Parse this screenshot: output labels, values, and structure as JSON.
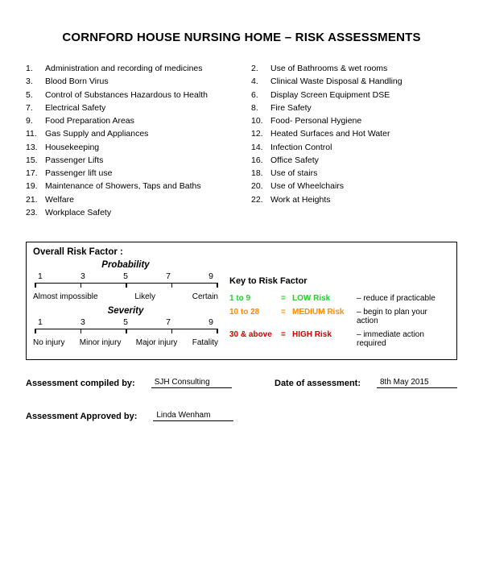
{
  "title": "CORNFORD HOUSE NURSING HOME – RISK ASSESSMENTS",
  "items_left": [
    {
      "n": "1.",
      "t": "Administration and recording of medicines"
    },
    {
      "n": "3.",
      "t": "Blood Born Virus"
    },
    {
      "n": "5.",
      "t": "Control of Substances Hazardous to Health"
    },
    {
      "n": "7.",
      "t": "Electrical Safety"
    },
    {
      "n": "9.",
      "t": "Food Preparation Areas"
    },
    {
      "n": "11.",
      "t": "Gas Supply and Appliances"
    },
    {
      "n": "13.",
      "t": "Housekeeping"
    },
    {
      "n": "15.",
      "t": "Passenger Lifts"
    },
    {
      "n": "17.",
      "t": "Passenger lift use"
    },
    {
      "n": "19.",
      "t": "Maintenance of Showers, Taps and Baths"
    },
    {
      "n": "21.",
      "t": "Welfare"
    },
    {
      "n": "23.",
      "t": "Workplace Safety"
    }
  ],
  "items_right": [
    {
      "n": "2.",
      "t": "Use of Bathrooms & wet rooms"
    },
    {
      "n": "4.",
      "t": "Clinical Waste Disposal & Handling"
    },
    {
      "n": "6.",
      "t": "Display Screen Equipment DSE"
    },
    {
      "n": "8.",
      "t": "Fire Safety"
    },
    {
      "n": "10.",
      "t": "Food- Personal Hygiene"
    },
    {
      "n": "12.",
      "t": "Heated Surfaces and Hot Water"
    },
    {
      "n": "14.",
      "t": "Infection Control"
    },
    {
      "n": "16.",
      "t": "Office Safety"
    },
    {
      "n": "18.",
      "t": "Use of stairs"
    },
    {
      "n": "20.",
      "t": "Use of Wheelchairs"
    },
    {
      "n": "22.",
      "t": "Work at Heights"
    }
  ],
  "box_title": "Overall Risk Factor :",
  "prob": {
    "heading": "Probability",
    "nums": [
      "1",
      "3",
      "5",
      "7",
      "9"
    ],
    "labels": [
      "Almost impossible",
      "Likely",
      "Certain"
    ]
  },
  "sev": {
    "heading": "Severity",
    "nums": [
      "1",
      "3",
      "5",
      "7",
      "9"
    ],
    "labels": [
      "No injury",
      "Minor injury",
      "Major injury",
      "Fatality"
    ]
  },
  "key": {
    "title": "Key to Risk Factor",
    "rows": [
      {
        "range": "1 to 9",
        "level": "LOW Risk",
        "action": "– reduce if practicable",
        "color": "c-green"
      },
      {
        "range": "10 to 28",
        "level": "MEDIUM Risk",
        "action": "– begin to plan your action",
        "color": "c-orange"
      },
      {
        "range": "30 & above",
        "level": "HIGH Risk",
        "action": "– immediate action required",
        "color": "c-red"
      }
    ]
  },
  "sig": {
    "compiled_label": "Assessment compiled by:",
    "compiled_val": "SJH Consulting",
    "date_label": "Date of assessment:",
    "date_val": "8th May 2015",
    "approved_label": "Assessment Approved by:",
    "approved_val": "Linda Wenham"
  }
}
